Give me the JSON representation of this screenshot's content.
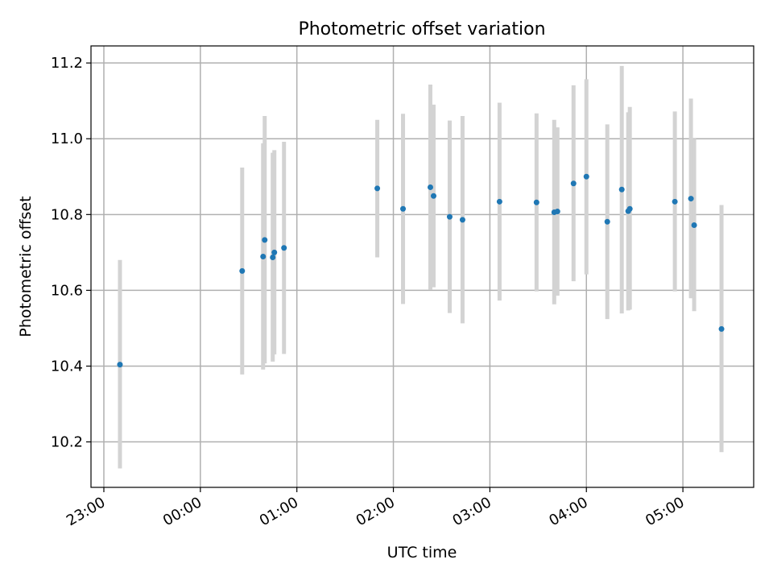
{
  "chart_data": {
    "type": "scatter",
    "title": "Photometric offset variation",
    "xlabel": "UTC time",
    "ylabel": "Photometric offset",
    "grid": true,
    "xlim": [
      "22:52",
      "05:44"
    ],
    "ylim": [
      10.08,
      11.245
    ],
    "x_ticks": [
      "23:00",
      "00:00",
      "01:00",
      "02:00",
      "03:00",
      "04:00",
      "05:00"
    ],
    "y_ticks": [
      "10.2",
      "10.4",
      "10.6",
      "10.8",
      "11.0",
      "11.2"
    ],
    "colors": {
      "point": "#1f77b4",
      "errorbar": "#d3d3d3",
      "grid": "#b0b0b0"
    },
    "points": [
      {
        "time": "23:10",
        "y": 10.404,
        "err_low": 10.13,
        "err_high": 10.68
      },
      {
        "time": "00:26",
        "y": 10.651,
        "err_low": 10.378,
        "err_high": 10.924
      },
      {
        "time": "00:39",
        "y": 10.689,
        "err_low": 10.391,
        "err_high": 10.988
      },
      {
        "time": "00:40",
        "y": 10.733,
        "err_low": 10.407,
        "err_high": 11.06
      },
      {
        "time": "00:45",
        "y": 10.687,
        "err_low": 10.412,
        "err_high": 10.963
      },
      {
        "time": "00:46",
        "y": 10.7,
        "err_low": 10.431,
        "err_high": 10.97
      },
      {
        "time": "00:52",
        "y": 10.712,
        "err_low": 10.432,
        "err_high": 10.992
      },
      {
        "time": "01:50",
        "y": 10.869,
        "err_low": 10.687,
        "err_high": 11.05
      },
      {
        "time": "02:06",
        "y": 10.815,
        "err_low": 10.564,
        "err_high": 11.066
      },
      {
        "time": "02:23",
        "y": 10.872,
        "err_low": 10.601,
        "err_high": 11.143
      },
      {
        "time": "02:25",
        "y": 10.849,
        "err_low": 10.608,
        "err_high": 11.09
      },
      {
        "time": "02:35",
        "y": 10.794,
        "err_low": 10.54,
        "err_high": 11.048
      },
      {
        "time": "02:43",
        "y": 10.786,
        "err_low": 10.513,
        "err_high": 11.06
      },
      {
        "time": "03:06",
        "y": 10.834,
        "err_low": 10.573,
        "err_high": 11.095
      },
      {
        "time": "03:29",
        "y": 10.832,
        "err_low": 10.597,
        "err_high": 11.067
      },
      {
        "time": "03:40",
        "y": 10.806,
        "err_low": 10.563,
        "err_high": 11.05
      },
      {
        "time": "03:42",
        "y": 10.808,
        "err_low": 10.586,
        "err_high": 11.03
      },
      {
        "time": "03:52",
        "y": 10.882,
        "err_low": 10.624,
        "err_high": 11.141
      },
      {
        "time": "04:00",
        "y": 10.9,
        "err_low": 10.642,
        "err_high": 11.157
      },
      {
        "time": "04:13",
        "y": 10.781,
        "err_low": 10.524,
        "err_high": 11.038
      },
      {
        "time": "04:22",
        "y": 10.866,
        "err_low": 10.539,
        "err_high": 11.192
      },
      {
        "time": "04:26",
        "y": 10.809,
        "err_low": 10.547,
        "err_high": 11.07
      },
      {
        "time": "04:27",
        "y": 10.815,
        "err_low": 10.549,
        "err_high": 11.084
      },
      {
        "time": "04:55",
        "y": 10.834,
        "err_low": 10.597,
        "err_high": 11.072
      },
      {
        "time": "05:05",
        "y": 10.842,
        "err_low": 10.579,
        "err_high": 11.106
      },
      {
        "time": "05:07",
        "y": 10.772,
        "err_low": 10.545,
        "err_high": 11.0
      },
      {
        "time": "05:24",
        "y": 10.498,
        "err_low": 10.173,
        "err_high": 10.825
      }
    ]
  }
}
